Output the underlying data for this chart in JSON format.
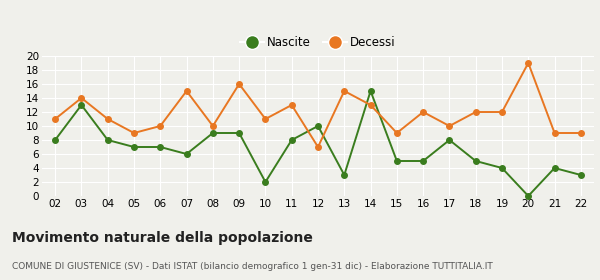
{
  "years": [
    2,
    3,
    4,
    5,
    6,
    7,
    8,
    9,
    10,
    11,
    12,
    13,
    14,
    15,
    16,
    17,
    18,
    19,
    20,
    21,
    22
  ],
  "nascite": [
    8,
    13,
    8,
    7,
    7,
    6,
    9,
    9,
    2,
    8,
    10,
    3,
    15,
    5,
    5,
    8,
    5,
    4,
    0,
    4,
    3
  ],
  "decessi": [
    11,
    14,
    11,
    9,
    10,
    15,
    10,
    16,
    11,
    13,
    7,
    15,
    13,
    9,
    12,
    10,
    12,
    12,
    19,
    9,
    9
  ],
  "nascite_color": "#3a7d1e",
  "decessi_color": "#e87722",
  "background_color": "#f0f0eb",
  "grid_color": "#ffffff",
  "ylim": [
    0,
    20
  ],
  "yticks": [
    0,
    2,
    4,
    6,
    8,
    10,
    12,
    14,
    16,
    18,
    20
  ],
  "title": "Movimento naturale della popolazione",
  "subtitle": "COMUNE DI GIUSTENICE (SV) - Dati ISTAT (bilancio demografico 1 gen-31 dic) - Elaborazione TUTTITALIA.IT",
  "legend_nascite": "Nascite",
  "legend_decessi": "Decessi",
  "marker_size": 4,
  "line_width": 1.4,
  "title_fontsize": 10,
  "subtitle_fontsize": 6.5,
  "tick_fontsize": 7.5,
  "legend_fontsize": 8.5
}
